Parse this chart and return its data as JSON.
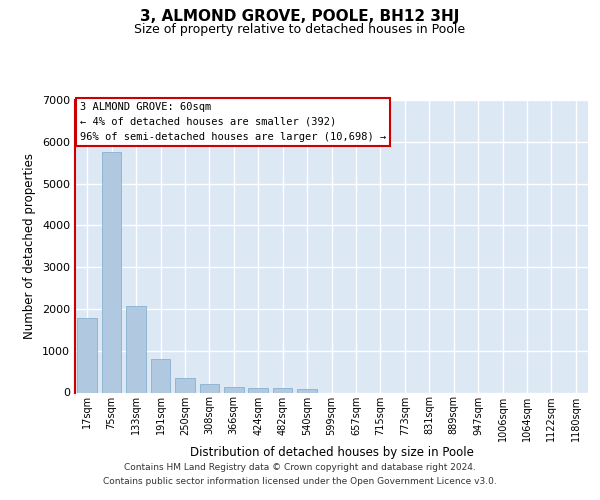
{
  "title": "3, ALMOND GROVE, POOLE, BH12 3HJ",
  "subtitle": "Size of property relative to detached houses in Poole",
  "xlabel": "Distribution of detached houses by size in Poole",
  "ylabel": "Number of detached properties",
  "categories": [
    "17sqm",
    "75sqm",
    "133sqm",
    "191sqm",
    "250sqm",
    "308sqm",
    "366sqm",
    "424sqm",
    "482sqm",
    "540sqm",
    "599sqm",
    "657sqm",
    "715sqm",
    "773sqm",
    "831sqm",
    "889sqm",
    "947sqm",
    "1006sqm",
    "1064sqm",
    "1122sqm",
    "1180sqm"
  ],
  "values": [
    1780,
    5750,
    2080,
    800,
    340,
    200,
    120,
    110,
    100,
    80,
    0,
    0,
    0,
    0,
    0,
    0,
    0,
    0,
    0,
    0,
    0
  ],
  "bar_color": "#b0c8e0",
  "bar_edge_color": "#7aaac8",
  "highlight_line_color": "#cc0000",
  "annotation_line1": "3 ALMOND GROVE: 60sqm",
  "annotation_line2": "← 4% of detached houses are smaller (392)",
  "annotation_line3": "96% of semi-detached houses are larger (10,698) →",
  "annotation_box_facecolor": "#ffffff",
  "annotation_box_edgecolor": "#cc0000",
  "ylim": [
    0,
    7000
  ],
  "yticks": [
    0,
    1000,
    2000,
    3000,
    4000,
    5000,
    6000,
    7000
  ],
  "bg_color": "#dde8f5",
  "grid_color": "#ffffff",
  "footer_line1": "Contains HM Land Registry data © Crown copyright and database right 2024.",
  "footer_line2": "Contains public sector information licensed under the Open Government Licence v3.0."
}
